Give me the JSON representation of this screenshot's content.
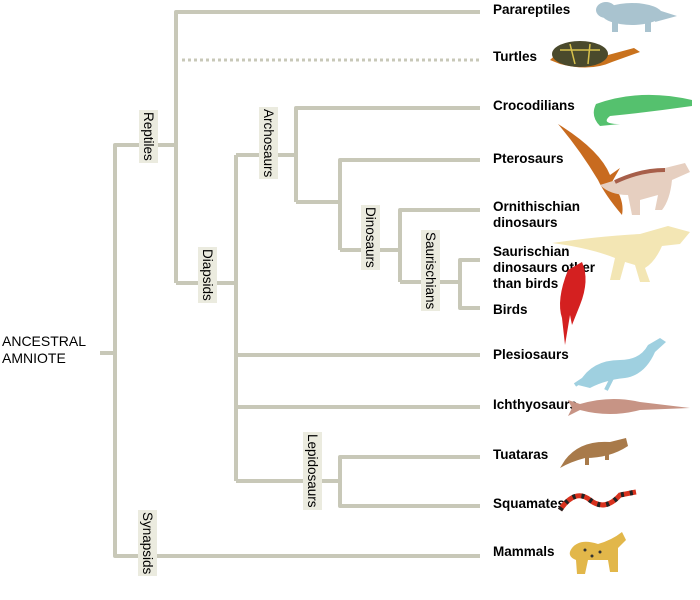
{
  "root_label": "ANCESTRAL AMNIOTE",
  "clades": {
    "reptiles": "Reptiles",
    "diapsids": "Diapsids",
    "archosaurs": "Archosaurs",
    "dinosaurs": "Dinosaurs",
    "saurischians": "Saurischians",
    "lepidosaurs": "Lepidosaurs",
    "synapsids": "Synapsids"
  },
  "taxa": [
    {
      "label": "Parareptiles",
      "icon": "parareptile-icon"
    },
    {
      "label": "Turtles",
      "icon": "turtle-icon"
    },
    {
      "label": "Crocodilians",
      "icon": "crocodile-icon"
    },
    {
      "label": "Pterosaurs",
      "icon": "pterosaur-icon"
    },
    {
      "label": "Ornithischian dinosaurs",
      "icon": "ornithischian-icon"
    },
    {
      "label": "Saurischian dinosaurs other than birds",
      "icon": "saurischian-icon"
    },
    {
      "label": "Birds",
      "icon": "bird-icon"
    },
    {
      "label": "Plesiosaurs",
      "icon": "plesiosaur-icon"
    },
    {
      "label": "Ichthyosaurs",
      "icon": "ichthyosaur-icon"
    },
    {
      "label": "Tuataras",
      "icon": "tuatara-icon"
    },
    {
      "label": "Squamates",
      "icon": "snake-icon"
    },
    {
      "label": "Mammals",
      "icon": "mammal-icon"
    }
  ],
  "colors": {
    "branch": "#c8c8b8",
    "label_bg": "#ebebdf"
  }
}
